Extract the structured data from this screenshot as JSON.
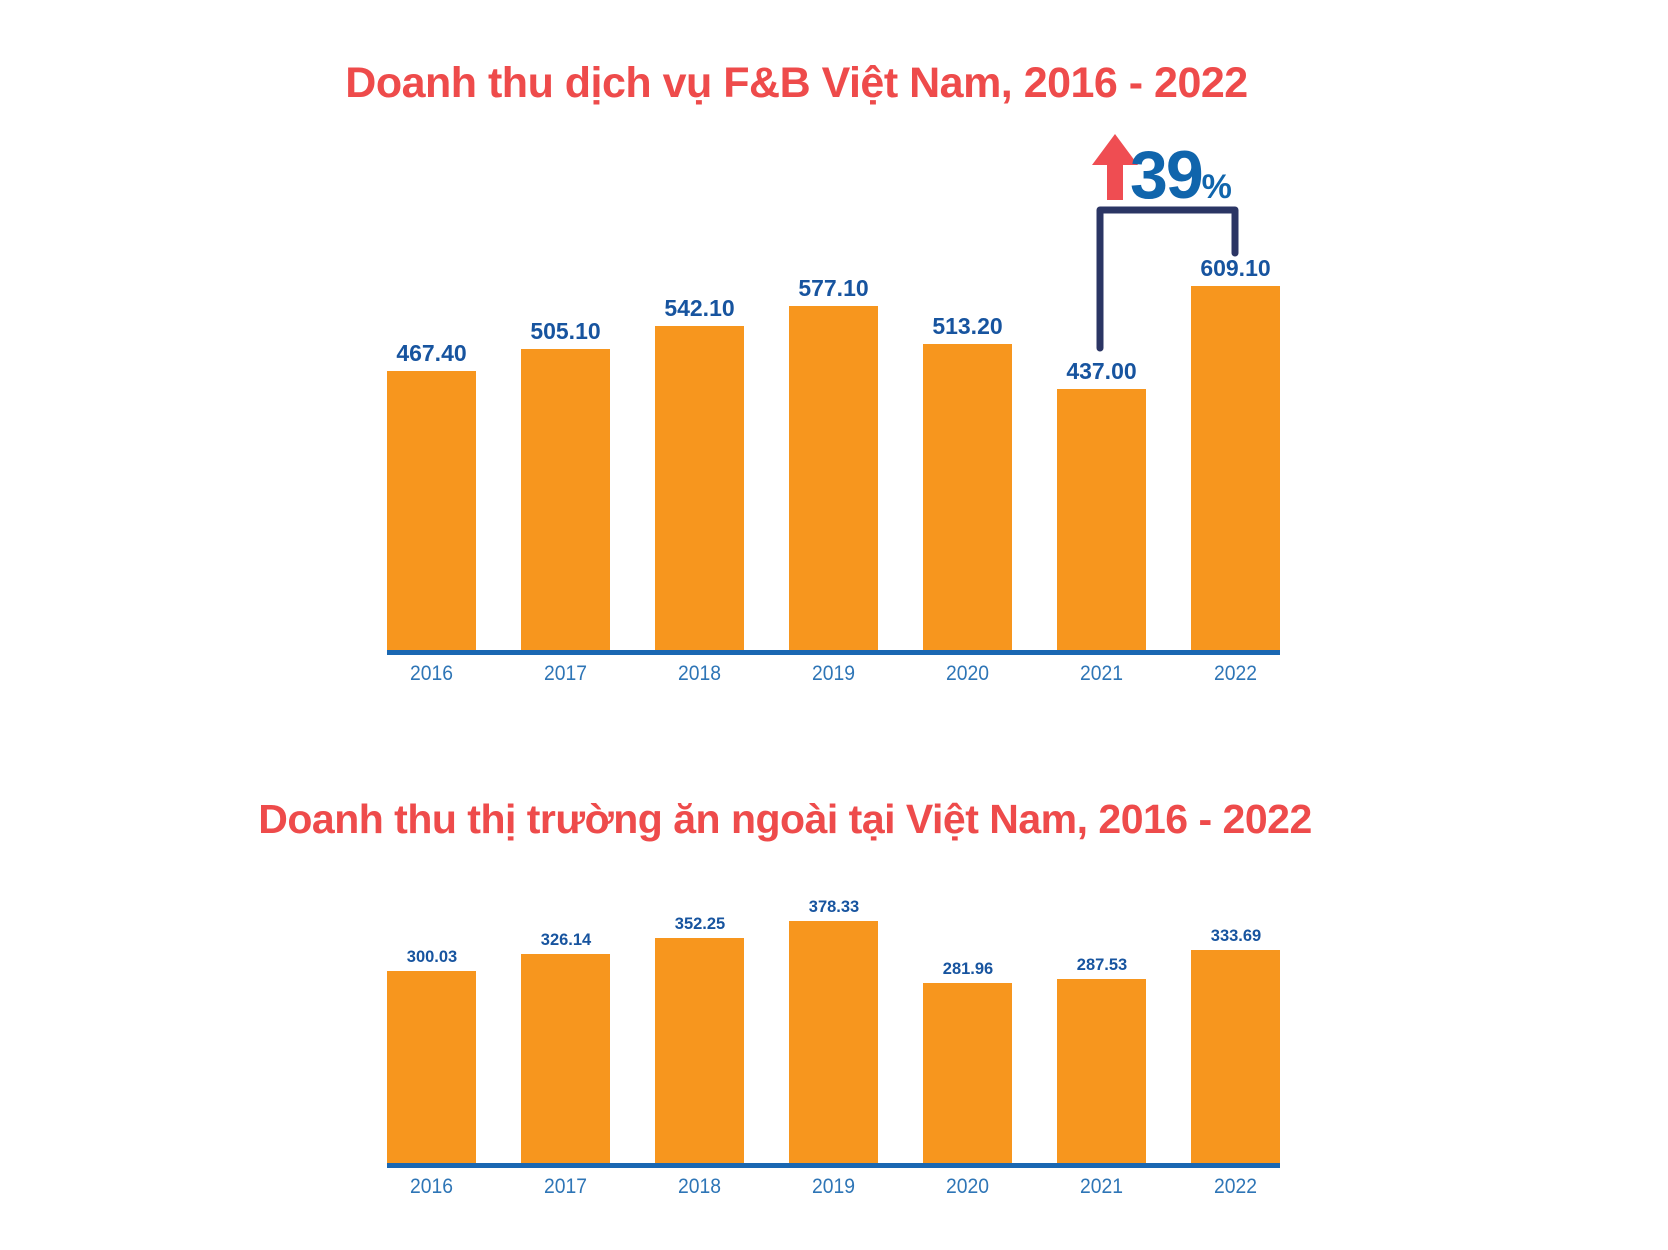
{
  "colors": {
    "bar": "#F7961E",
    "axis": "#1A67B2",
    "value_label": "#17549F",
    "year_label": "#2E75B6",
    "title": "#EE4B4B",
    "arrow": "#EF4D52",
    "bracket": "#2B3564",
    "percent": "#1065AC"
  },
  "chart_data": [
    {
      "type": "bar",
      "title": "Doanh thu dịch vụ F&B Việt Nam, 2016 - 2022",
      "categories": [
        "2016",
        "2017",
        "2018",
        "2019",
        "2020",
        "2021",
        "2022"
      ],
      "values": [
        467.4,
        505.1,
        542.1,
        577.1,
        513.2,
        437.0,
        609.1
      ],
      "value_labels": [
        "467.40",
        "505.10",
        "542.10",
        "577.10",
        "513.20",
        "437.00",
        "609.10"
      ],
      "xlabel": "",
      "ylabel": "",
      "ylim": [
        0,
        650
      ],
      "grid": false,
      "legend": false,
      "annotation": {
        "text": "39",
        "suffix": "%",
        "type": "increase-arrow-bracket",
        "from_category": "2021",
        "to_category": "2022"
      }
    },
    {
      "type": "bar",
      "title": "Doanh thu thị trường ăn ngoài tại Việt Nam, 2016 - 2022",
      "categories": [
        "2016",
        "2017",
        "2018",
        "2019",
        "2020",
        "2021",
        "2022"
      ],
      "values": [
        300.03,
        326.14,
        352.25,
        378.33,
        281.96,
        287.53,
        333.69
      ],
      "value_labels": [
        "300.03",
        "326.14",
        "352.25",
        "378.33",
        "281.96",
        "287.53",
        "333.69"
      ],
      "xlabel": "",
      "ylabel": "",
      "ylim": [
        0,
        400
      ],
      "grid": false,
      "legend": false
    }
  ]
}
